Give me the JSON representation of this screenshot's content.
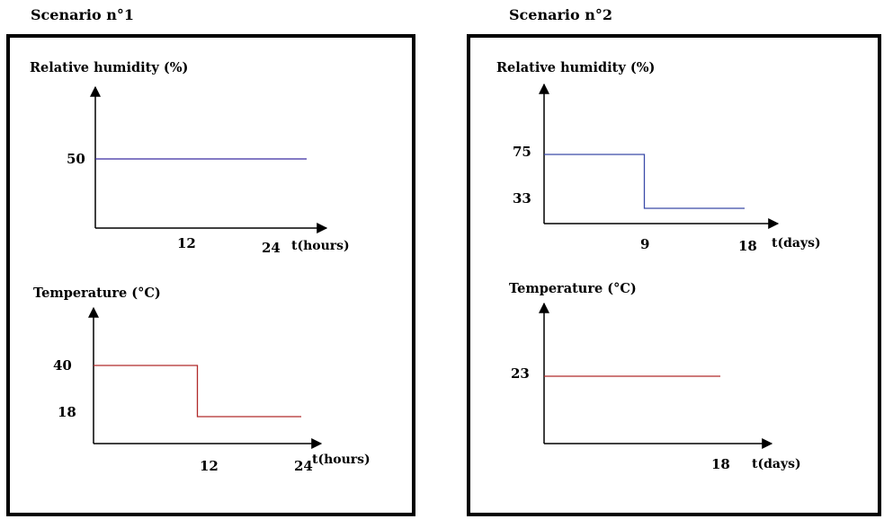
{
  "scenarios": [
    {
      "title": "Scenario n°1"
    },
    {
      "title": "Scenario n°2"
    }
  ],
  "chart_data": [
    {
      "type": "line",
      "scenario": "Scenario n°1",
      "ylabel": "Relative humidity (%)",
      "xlabel": "t(hours)",
      "xticks": [
        "12",
        "24"
      ],
      "yticks": [
        "50"
      ],
      "color": "#3a2aa0",
      "points": [
        [
          0,
          50
        ],
        [
          24,
          50
        ]
      ]
    },
    {
      "type": "line",
      "scenario": "Scenario n°1",
      "ylabel": "Temperature (°C)",
      "xlabel": "t(hours)",
      "xticks": [
        "12",
        "24"
      ],
      "yticks": [
        "40",
        "18"
      ],
      "color": "#b02a2a",
      "points": [
        [
          0,
          40
        ],
        [
          12,
          40
        ],
        [
          12,
          18
        ],
        [
          24,
          18
        ]
      ]
    },
    {
      "type": "line",
      "scenario": "Scenario n°2",
      "ylabel": "Relative humidity (%)",
      "xlabel": "t(days)",
      "xticks": [
        "9",
        "18"
      ],
      "yticks": [
        "75",
        "33"
      ],
      "color": "#3a4aa8",
      "points": [
        [
          0,
          75
        ],
        [
          9,
          75
        ],
        [
          9,
          33
        ],
        [
          18,
          33
        ]
      ]
    },
    {
      "type": "line",
      "scenario": "Scenario n°2",
      "ylabel": "Temperature (°C)",
      "xlabel": "t(days)",
      "xticks": [
        "18"
      ],
      "yticks": [
        "23"
      ],
      "color": "#b02a2a",
      "points": [
        [
          0,
          23
        ],
        [
          18,
          23
        ]
      ]
    }
  ]
}
